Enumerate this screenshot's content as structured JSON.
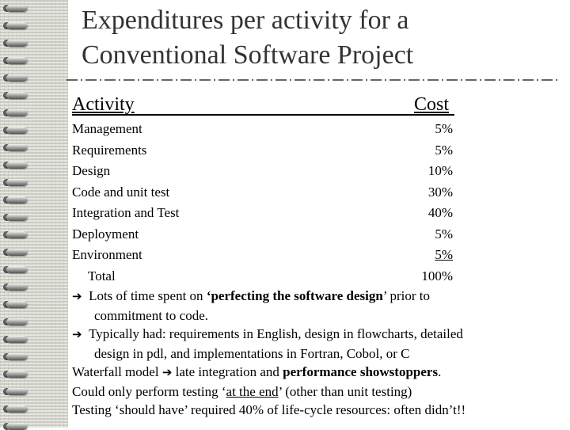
{
  "title": {
    "line1": "Expenditures per activity for a",
    "line2": "Conventional Software Project"
  },
  "table": {
    "header": {
      "activity": "Activity",
      "cost": "Cost"
    },
    "rows": [
      {
        "activity": "Management",
        "cost": "5%"
      },
      {
        "activity": "Requirements",
        "cost": "5%"
      },
      {
        "activity": "Design",
        "cost": "10%"
      },
      {
        "activity": "Code and unit test",
        "cost": "30%"
      },
      {
        "activity": "Integration and Test",
        "cost": "40%"
      },
      {
        "activity": "Deployment",
        "cost": "5%"
      },
      {
        "activity": "Environment",
        "cost": "5%"
      }
    ],
    "total": {
      "label": "Total",
      "cost": "100%"
    }
  },
  "notes": {
    "n1": {
      "arrow": "➔",
      "pre": "Lots of time spent on ",
      "bold": "‘perfecting the software design",
      "post1": "’ prior to",
      "cont": "commitment to code."
    },
    "n2": {
      "arrow": "➔",
      "line1": "Typically had:  requirements in English, design in flowcharts, detailed",
      "line2": "design in pdl, and implementations in Fortran, Cobol, or C"
    },
    "n3": {
      "pre": "Waterfall model ",
      "arrow": "➔",
      "mid": " late integration and ",
      "bold": "performance showstoppers",
      "post": "."
    },
    "n4": {
      "pre": "Could only perform testing ‘",
      "underlined": "at the end",
      "post": "’ (other than unit testing)"
    },
    "n5": {
      "text": "Testing ‘should have’ required 40% of life-cycle resources:  often didn’t!!"
    }
  }
}
